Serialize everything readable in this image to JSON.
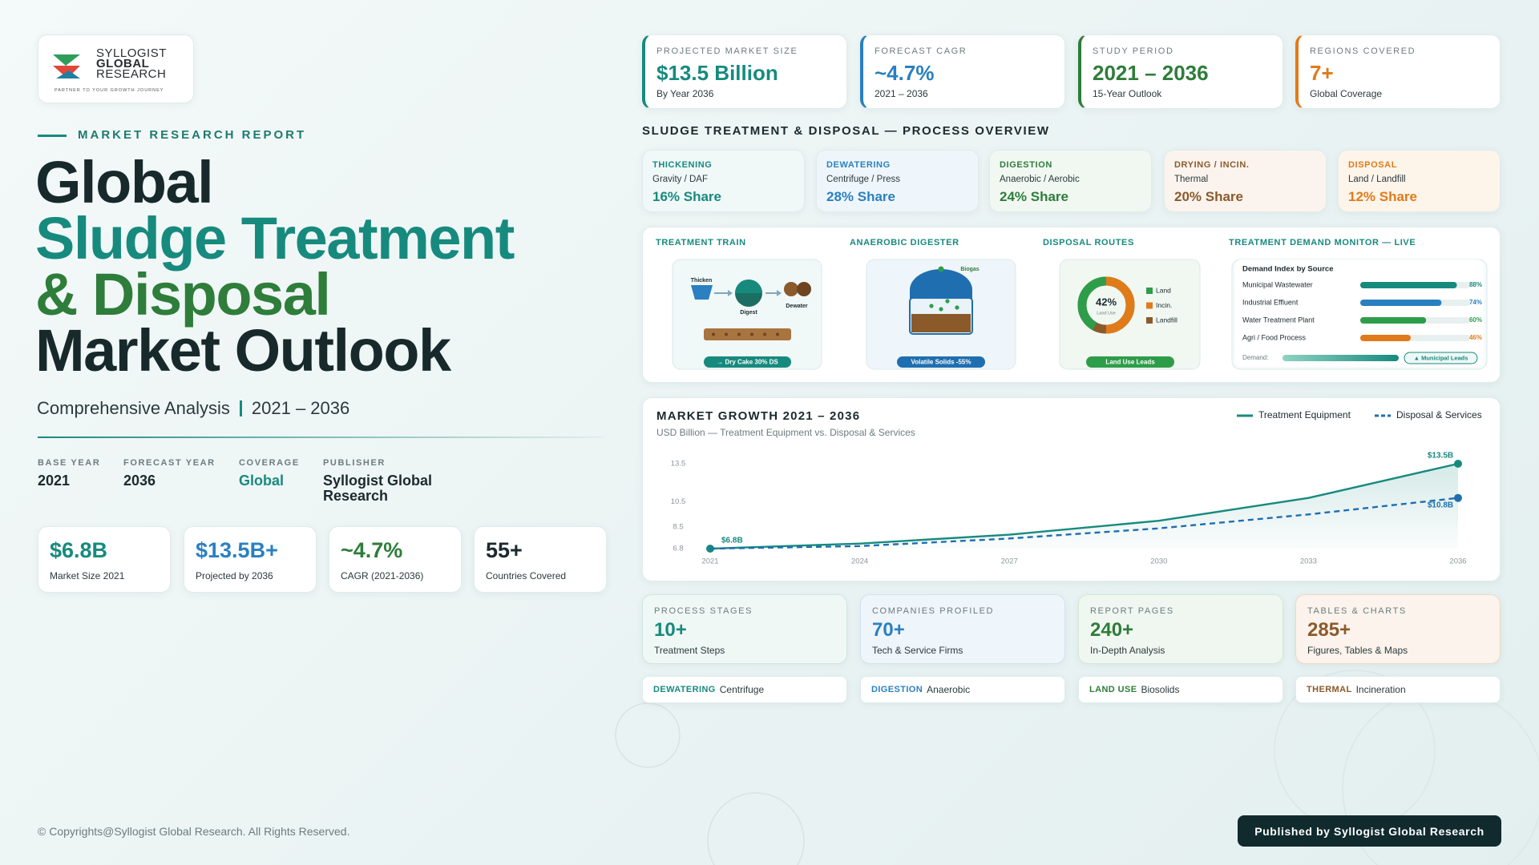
{
  "logo": {
    "line1": "SYLLOGIST",
    "line2": "GLOBAL",
    "line3": "RESEARCH",
    "tagline": "PARTNER TO YOUR GROWTH JOURNEY"
  },
  "hero": {
    "eyebrow": "MARKET RESEARCH REPORT",
    "title_lines": [
      "Global",
      "Sludge Treatment",
      "& Disposal",
      "Market Outlook"
    ],
    "subtitle_left": "Comprehensive Analysis",
    "subtitle_right": "2021 – 2036"
  },
  "meta": [
    {
      "label": "BASE YEAR",
      "value": "2021"
    },
    {
      "label": "FORECAST YEAR",
      "value": "2036"
    },
    {
      "label": "COVERAGE",
      "value": "Global"
    },
    {
      "label": "PUBLISHER",
      "value": "Syllogist Global Research"
    }
  ],
  "stats": [
    {
      "value": "$6.8B",
      "label": "Market Size 2021"
    },
    {
      "value": "$13.5B+",
      "label": "Projected by 2036"
    },
    {
      "value": "~4.7%",
      "label": "CAGR (2021-2036)"
    },
    {
      "value": "55+",
      "label": "Countries Covered"
    }
  ],
  "kpis": [
    {
      "label": "PROJECTED MARKET SIZE",
      "value": "$13.5 Billion",
      "sub": "By Year 2036"
    },
    {
      "label": "FORECAST CAGR",
      "value": "~4.7%",
      "sub": "2021 – 2036"
    },
    {
      "label": "STUDY PERIOD",
      "value": "2021 – 2036",
      "sub": "15-Year Outlook"
    },
    {
      "label": "REGIONS COVERED",
      "value": "7+",
      "sub": "Global Coverage"
    }
  ],
  "process": {
    "title": "SLUDGE TREATMENT & DISPOSAL — PROCESS OVERVIEW",
    "stages": [
      {
        "name": "THICKENING",
        "method": "Gravity / DAF",
        "share": "16% Share"
      },
      {
        "name": "DEWATERING",
        "method": "Centrifuge / Press",
        "share": "28% Share"
      },
      {
        "name": "DIGESTION",
        "method": "Anaerobic / Aerobic",
        "share": "24% Share"
      },
      {
        "name": "DRYING / INCIN.",
        "method": "Thermal",
        "share": "20% Share"
      },
      {
        "name": "DISPOSAL",
        "method": "Land / Landfill",
        "share": "12% Share"
      }
    ]
  },
  "panels": {
    "train": {
      "title": "TREATMENT TRAIN",
      "labels": [
        "Thicken",
        "Digest",
        "Dewater"
      ],
      "badge": "→ Dry Cake 30% DS"
    },
    "digester": {
      "title": "ANAEROBIC DIGESTER",
      "gas": "Biogas",
      "badge": "Volatile Solids -55%"
    },
    "routes": {
      "title": "DISPOSAL ROUTES",
      "center_value": 42,
      "center_label": "42%",
      "center_sub": "Land Use",
      "legend": [
        "Land",
        "Incin.",
        "Landfill"
      ],
      "badge": "Land Use Leads"
    },
    "monitor": {
      "title": "TREATMENT DEMAND MONITOR — LIVE",
      "heading": "Demand Index by Source",
      "rows": [
        {
          "label": "Municipal Wastewater",
          "value": 88,
          "value_label": "88%"
        },
        {
          "label": "Industrial Effluent",
          "value": 74,
          "value_label": "74%"
        },
        {
          "label": "Water Treatment Plant",
          "value": 60,
          "value_label": "60%"
        },
        {
          "label": "Agri / Food Process",
          "value": 46,
          "value_label": "46%"
        }
      ],
      "demand_label": "Demand:",
      "demand_badge": "▲ Municipal Leads"
    }
  },
  "chart_data": {
    "type": "line",
    "title": "MARKET GROWTH 2021 – 2036",
    "subtitle": "USD Billion — Treatment Equipment vs. Disposal & Services",
    "x": [
      2021,
      2024,
      2027,
      2030,
      2033,
      2036
    ],
    "series": [
      {
        "name": "Treatment Equipment",
        "color": "#178a7e",
        "dashed": false,
        "area": true,
        "values": [
          6.8,
          7.2,
          7.9,
          9.0,
          10.8,
          13.5
        ],
        "value_labels": [
          "$6.8B",
          null,
          null,
          null,
          null,
          "$13.5B"
        ]
      },
      {
        "name": "Disposal & Services",
        "color": "#1f6fb0",
        "dashed": true,
        "area": false,
        "values": [
          6.8,
          7.0,
          7.6,
          8.4,
          9.5,
          10.8
        ],
        "value_labels": [
          null,
          null,
          null,
          null,
          null,
          "$10.8B"
        ]
      }
    ],
    "xlim": [
      2021,
      2036
    ],
    "xticks": [
      2021,
      2024,
      2027,
      2030,
      2033,
      2036
    ],
    "ylim": [
      6.8,
      13.5
    ],
    "yticks": [
      6.8,
      8.5,
      10.5,
      13.5
    ],
    "grid": false,
    "legend": "top-right"
  },
  "bottom_stats": [
    {
      "label": "PROCESS STAGES",
      "value": "10+",
      "sub": "Treatment Steps"
    },
    {
      "label": "COMPANIES PROFILED",
      "value": "70+",
      "sub": "Tech & Service Firms"
    },
    {
      "label": "REPORT PAGES",
      "value": "240+",
      "sub": "In-Depth Analysis"
    },
    {
      "label": "TABLES & CHARTS",
      "value": "285+",
      "sub": "Figures, Tables & Maps"
    }
  ],
  "tags": [
    {
      "key": "DEWATERING",
      "text": "Centrifuge"
    },
    {
      "key": "DIGESTION",
      "text": "Anaerobic"
    },
    {
      "key": "LAND USE",
      "text": "Biosolids"
    },
    {
      "key": "THERMAL",
      "text": "Incineration"
    }
  ],
  "footer": {
    "copyright": "© Copyrights@Syllogist Global Research. All Rights Reserved.",
    "button": "Published by Syllogist Global Research"
  }
}
